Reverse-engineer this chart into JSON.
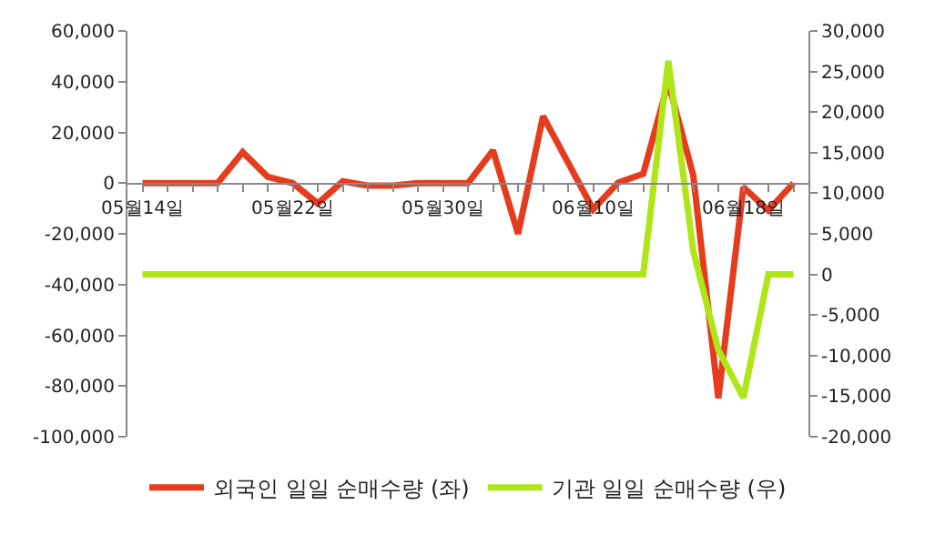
{
  "chart_data": {
    "type": "line",
    "categories": [
      "05월14일",
      null,
      null,
      null,
      null,
      null,
      "05월22일",
      null,
      null,
      null,
      null,
      null,
      "05월30일",
      null,
      null,
      null,
      null,
      null,
      "06월10일",
      null,
      null,
      null,
      null,
      null,
      "06월18일",
      null,
      null
    ],
    "series": [
      {
        "name": "외국인 일일 순매수량 (좌)",
        "color": "#e63c1e",
        "values": [
          0,
          0,
          0,
          0,
          12200,
          2500,
          0,
          -8000,
          700,
          -1000,
          -1000,
          0,
          0,
          0,
          12900,
          -20000,
          26400,
          8000,
          -10300,
          200,
          3700,
          39800,
          3000,
          -84800,
          -1600,
          -10800,
          0
        ]
      },
      {
        "name": "기관 일일 순매수량 (우)",
        "color": "#aee619",
        "axis": "y2",
        "values": [
          0,
          0,
          0,
          0,
          0,
          0,
          0,
          0,
          0,
          0,
          0,
          0,
          0,
          0,
          0,
          0,
          0,
          0,
          0,
          0,
          0,
          26300,
          2900,
          -9300,
          -15200,
          0,
          0
        ]
      }
    ],
    "ylim": [
      -100000,
      60000
    ],
    "yticks": [
      {
        "value": -100000,
        "label": "-100,000"
      },
      {
        "value": -80000,
        "label": "-80,000"
      },
      {
        "value": -60000,
        "label": "-60,000"
      },
      {
        "value": -40000,
        "label": "-40,000"
      },
      {
        "value": -20000,
        "label": "-20,000"
      },
      0,
      {
        "value": 20000,
        "label": "20,000"
      },
      {
        "value": 40000,
        "label": "40,000"
      },
      {
        "value": 60000,
        "label": "60,000"
      }
    ],
    "y2lim": [
      -20000,
      30000
    ],
    "y2ticks": [
      {
        "value": -20000,
        "label": "-20,000"
      },
      {
        "value": -15000,
        "label": "-15,000"
      },
      {
        "value": -10000,
        "label": "-10,000"
      },
      {
        "value": -5000,
        "label": "-5,000"
      },
      0,
      {
        "value": 5000,
        "label": "5,000"
      },
      {
        "value": 10000,
        "label": "10,000"
      },
      {
        "value": 15000,
        "label": "15,000"
      },
      {
        "value": 20000,
        "label": "20,000"
      },
      {
        "value": 25000,
        "label": "25,000"
      },
      {
        "value": 30000,
        "label": "30,000"
      }
    ],
    "legend": "bottom",
    "marker": "none",
    "line_style": "solid"
  }
}
